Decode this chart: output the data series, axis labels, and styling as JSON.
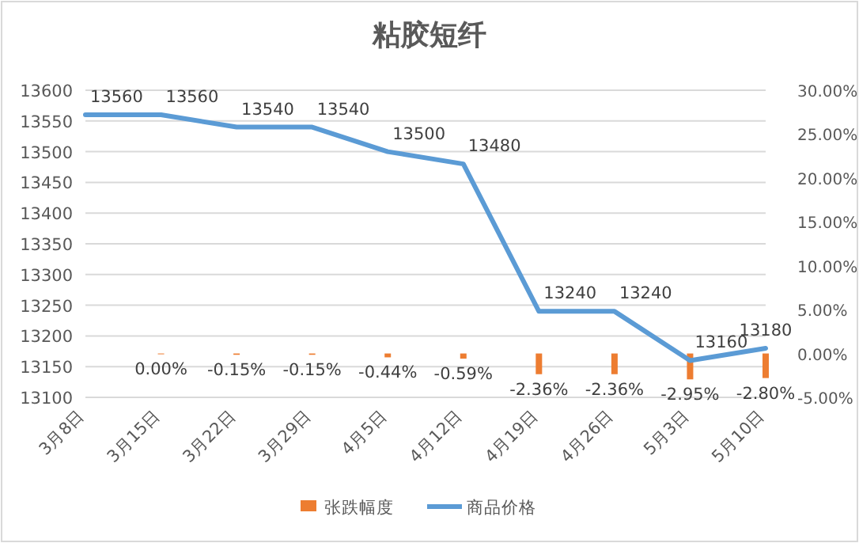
{
  "chart_data": {
    "type": "bar",
    "title": "粘胶短纤",
    "categories": [
      "3月8日",
      "3月15日",
      "3月22日",
      "3月29日",
      "4月5日",
      "4月12日",
      "4月19日",
      "4月26日",
      "5月3日",
      "5月10日"
    ],
    "series": [
      {
        "name": "张跌幅度",
        "axis": "y2",
        "color": "#ed7d31",
        "values": [
          null,
          0,
          -0.15,
          -0.15,
          -0.44,
          -0.59,
          -2.36,
          -2.36,
          -2.95,
          -2.8
        ],
        "value_labels": [
          null,
          "0.00%",
          "-0.15%",
          "-0.15%",
          "-0.44%",
          "-0.59%",
          "-2.36%",
          "-2.36%",
          "-2.95%",
          "-2.80%"
        ]
      },
      {
        "name": "商品价格",
        "type": "line",
        "axis": "y",
        "color": "#5b9bd5",
        "values": [
          13560,
          13560,
          13540,
          13540,
          13500,
          13480,
          13240,
          13240,
          13160,
          13180
        ],
        "value_labels": [
          "13560",
          "13560",
          "13540",
          "13540",
          "13500",
          "13480",
          "13240",
          "13240",
          "13160",
          "13180"
        ]
      }
    ],
    "ylim": [
      13100,
      13600
    ],
    "yticks": [
      13100,
      13150,
      13200,
      13250,
      13300,
      13350,
      13400,
      13450,
      13500,
      13550,
      13600
    ],
    "y2lim": [
      -5,
      30
    ],
    "y2ticks": [
      {
        "value": -5,
        "label": "-5.00%"
      },
      {
        "value": 0,
        "label": "0.00%"
      },
      {
        "value": 5,
        "label": "5.00%"
      },
      {
        "value": 10,
        "label": "10.00%"
      },
      {
        "value": 15,
        "label": "15.00%"
      },
      {
        "value": 20,
        "label": "20.00%"
      },
      {
        "value": 25,
        "label": "25.00%"
      },
      {
        "value": 30,
        "label": "30.00%"
      }
    ],
    "grid": "y",
    "legend": "bottom"
  }
}
